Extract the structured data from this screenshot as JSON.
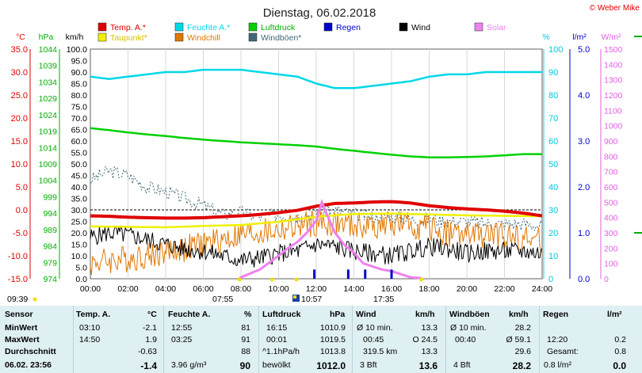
{
  "chart_data": {
    "type": "line",
    "title": "Dienstag, 06.02.2018",
    "credit": "© Weber Mike",
    "x_ticks": [
      "00:00",
      "02:00",
      "04:00",
      "06:00",
      "08:00",
      "10:00",
      "12:00",
      "14:00",
      "16:00",
      "18:00",
      "20:00",
      "22:00",
      "24:00"
    ],
    "x_range_hours": [
      0,
      24
    ],
    "axes": {
      "temp_c": {
        "label": "°C",
        "ticks": [
          "35.0",
          "30.0",
          "25.0",
          "20.0",
          "15.0",
          "10.0",
          "5.0",
          "0.0",
          "-5.0",
          "-10.0",
          "-15.0"
        ],
        "range": [
          -15,
          35
        ],
        "color": "#e00000"
      },
      "pressure_hpa": {
        "label": "hPa",
        "ticks": [
          "1044",
          "1039",
          "1034",
          "1029",
          "1024",
          "1019",
          "1014",
          "1009",
          "1004",
          "999",
          "994",
          "989",
          "984",
          "979",
          "974"
        ],
        "range": [
          974,
          1044
        ],
        "color": "#00b000"
      },
      "wind_kmh": {
        "label": "km/h",
        "ticks": [
          "100.0",
          "95.0",
          "90.0",
          "85.0",
          "80.0",
          "75.0",
          "70.0",
          "65.0",
          "60.0",
          "55.0",
          "50.0",
          "45.0",
          "40.0",
          "35.0",
          "30.0",
          "25.0",
          "20.0",
          "15.0",
          "10.0",
          "5.0",
          "0.0"
        ],
        "range": [
          0,
          100
        ],
        "color": "#000000"
      },
      "humidity_pct": {
        "label": "%",
        "ticks": [
          "100",
          "90",
          "80",
          "70",
          "60",
          "50",
          "40",
          "30",
          "20",
          "10",
          "0"
        ],
        "range": [
          0,
          100
        ],
        "color": "#00d8e8"
      },
      "rain_lm2": {
        "label": "l/m²",
        "ticks": [
          "5.0",
          "4.0",
          "3.0",
          "2.0",
          "1.0",
          "0.0"
        ],
        "range": [
          0,
          5
        ],
        "color": "#0000cc"
      },
      "solar_wm2": {
        "label": "W/m²",
        "ticks": [
          "1500",
          "1400",
          "1300",
          "1200",
          "1100",
          "1000",
          "900",
          "800",
          "700",
          "600",
          "500",
          "400",
          "300",
          "200",
          "100",
          "0"
        ],
        "range": [
          0,
          1500
        ],
        "color": "#e060e0"
      }
    },
    "legend": [
      {
        "name": "Temp. A.*",
        "color": "#e00000"
      },
      {
        "name": "Feuchte A.*",
        "color": "#00d8e8"
      },
      {
        "name": "Luftdruck",
        "color": "#00d000"
      },
      {
        "name": "Regen",
        "color": "#0000cc"
      },
      {
        "name": "Wind",
        "color": "#000000"
      },
      {
        "name": "Solar",
        "color": "#f080f0"
      },
      {
        "name": "Taupunkt*",
        "color": "#f0f000"
      },
      {
        "name": "Windchill",
        "color": "#e07800"
      },
      {
        "name": "Windböen*",
        "color": "#406878"
      }
    ],
    "series": [
      {
        "name": "Temp. A.*",
        "axis": "temp_c",
        "x": [
          0,
          1,
          2,
          3,
          4,
          5,
          6,
          7,
          8,
          9,
          10,
          11,
          12,
          13,
          14,
          15,
          16,
          17,
          18,
          19,
          20,
          21,
          22,
          23,
          24
        ],
        "values": [
          -1.3,
          -1.4,
          -1.6,
          -1.7,
          -1.8,
          -1.8,
          -1.7,
          -1.5,
          -1.3,
          -1.0,
          -0.6,
          -0.1,
          0.8,
          1.4,
          1.5,
          1.7,
          1.8,
          1.5,
          0.9,
          0.5,
          0.2,
          0.0,
          -0.3,
          -0.7,
          -1.3
        ]
      },
      {
        "name": "Taupunkt*",
        "axis": "temp_c",
        "x": [
          0,
          2,
          4,
          6,
          8,
          10,
          12,
          14,
          16,
          18,
          20,
          22,
          24
        ],
        "values": [
          -3.6,
          -3.7,
          -3.8,
          -3.5,
          -3.3,
          -2.6,
          -1.5,
          -0.9,
          -0.8,
          -1.0,
          -1.2,
          -1.3,
          -1.4
        ]
      },
      {
        "name": "Feuchte A.*",
        "axis": "humidity_pct",
        "x": [
          0,
          1,
          2,
          3,
          4,
          5,
          6,
          7,
          8,
          9,
          10,
          11,
          12,
          13,
          14,
          15,
          16,
          17,
          18,
          19,
          20,
          21,
          22,
          23,
          24
        ],
        "values": [
          88,
          87,
          88,
          89,
          90,
          90,
          91,
          91,
          91,
          90,
          89,
          88,
          85,
          83,
          83,
          84,
          85,
          86,
          88,
          89,
          89,
          90,
          90,
          90,
          90
        ]
      },
      {
        "name": "Luftdruck",
        "axis": "pressure_hpa",
        "x": [
          0,
          1,
          2,
          3,
          4,
          5,
          6,
          7,
          8,
          9,
          10,
          11,
          12,
          13,
          14,
          15,
          16,
          17,
          18,
          19,
          20,
          21,
          22,
          23,
          24
        ],
        "values": [
          1019.9,
          1019.3,
          1018.6,
          1018.0,
          1017.5,
          1016.9,
          1016.4,
          1016.0,
          1015.6,
          1015.3,
          1015.0,
          1014.7,
          1014.3,
          1013.6,
          1013.0,
          1012.4,
          1011.8,
          1011.3,
          1011.0,
          1011.0,
          1011.1,
          1011.3,
          1011.6,
          1012.0,
          1012.0
        ]
      },
      {
        "name": "Wind",
        "axis": "wind_kmh",
        "x": [
          0,
          1,
          2,
          3,
          4,
          5,
          6,
          7,
          8,
          9,
          10,
          11,
          12,
          13,
          14,
          15,
          16,
          17,
          18,
          19,
          20,
          21,
          22,
          23,
          24
        ],
        "values": [
          18,
          20,
          19,
          17,
          15,
          13,
          12,
          10,
          8,
          9,
          11,
          12,
          15,
          14,
          12,
          11,
          10,
          12,
          14,
          13,
          11,
          12,
          12,
          12,
          11
        ]
      },
      {
        "name": "Windchill",
        "axis": "temp_c",
        "x": [
          0,
          1,
          2,
          3,
          4,
          5,
          6,
          7,
          8,
          9,
          10,
          11,
          12,
          13,
          14,
          15,
          16,
          17,
          18,
          19,
          20,
          21,
          22,
          23,
          24
        ],
        "values": [
          -11.5,
          -11.0,
          -10.5,
          -10.0,
          -9.0,
          -8.5,
          -7.5,
          -6.5,
          -5.5,
          -5.0,
          -4.5,
          -3.5,
          -3.0,
          -3.0,
          -3.5,
          -3.5,
          -3.0,
          -3.5,
          -4.0,
          -5.0,
          -5.5,
          -5.5,
          -5.5,
          -6.0,
          -7.0
        ]
      },
      {
        "name": "Windböen*",
        "axis": "wind_kmh",
        "x": [
          0,
          1,
          2,
          3,
          4,
          5,
          6,
          7,
          8,
          9,
          10,
          11,
          12,
          13,
          14,
          15,
          16,
          17,
          18,
          19,
          20,
          21,
          22,
          23,
          24
        ],
        "values": [
          43,
          47,
          45,
          40,
          38,
          35,
          32,
          28,
          29,
          27,
          28,
          27,
          29,
          30,
          28,
          27,
          27,
          26,
          26,
          25,
          25,
          24,
          24,
          24,
          23
        ]
      },
      {
        "name": "Solar",
        "axis": "solar_wm2",
        "x": [
          7.9,
          8,
          9,
          10,
          10.5,
          11,
          11.5,
          12,
          12.3,
          12.6,
          13,
          13.5,
          14,
          14.5,
          15,
          15.5,
          16,
          16.5,
          17,
          17.5,
          17.6
        ],
        "values": [
          0,
          10,
          60,
          150,
          200,
          240,
          300,
          380,
          500,
          410,
          300,
          220,
          170,
          100,
          80,
          60,
          50,
          30,
          10,
          5,
          0
        ]
      },
      {
        "name": "Regen",
        "axis": "rain_lm2",
        "type": "bar",
        "x": [
          11.9,
          13.7,
          14.6,
          16.0
        ],
        "values": [
          0.2,
          0.2,
          0.2,
          0.2
        ]
      }
    ]
  },
  "chart_extras": {
    "events": [
      {
        "label": "09:39",
        "hour": 9.65
      },
      {
        "label": "07:55",
        "hour": 7.92
      },
      {
        "label": "10:57",
        "hour": 10.95
      },
      {
        "label": "17:35",
        "hour": 17.58
      }
    ]
  },
  "stats": {
    "headers": [
      "Sensor",
      "Temp. A.",
      "°C",
      "Feuchte A.",
      "%",
      "Luftdruck",
      "hPa",
      "Wind",
      "km/h",
      "Windböen",
      "km/h",
      "Regen",
      "l/m²"
    ],
    "rows": [
      {
        "label": "MinWert",
        "temp_t": "03:10",
        "temp_v": "-2.1",
        "hum_t": "12:55",
        "hum_v": "81",
        "press_t": "16:15",
        "press_v": "1010.9",
        "wind_t": "Ø 10 min.",
        "wind_v": "13.3",
        "gust_t": "Ø 10 min.",
        "gust_v": "28.2",
        "rain_t": "",
        "rain_v": ""
      },
      {
        "label": "MaxWert",
        "temp_t": "14:50",
        "temp_v": "1.9",
        "hum_t": "03:25",
        "hum_v": "91",
        "press_t": "00:01",
        "press_v": "1019.5",
        "wind_t": "00:45",
        "wind_m": "O 24.5",
        "wind_v": "",
        "gust_t": "00:40",
        "gust_v": "Ø 59.1",
        "rain_t": "12:20",
        "rain_v": "0.2"
      },
      {
        "label": "Durchschnitt",
        "temp_t": "",
        "temp_v": "-0.63",
        "hum_t": "",
        "hum_v": "88",
        "press_t": "^1.1hPa/h",
        "press_v": "1013.8",
        "wind_t": "319.5 km",
        "wind_v": "13.3",
        "gust_t": "",
        "gust_v": "29.6",
        "rain_t": "Gesamt:",
        "rain_v": "0.8"
      },
      {
        "label": "06.02. 23:56",
        "temp_t": "",
        "temp_v": "-1.4",
        "hum_t": "3.96 g/m³",
        "hum_v": "90",
        "press_t": "bewölkt",
        "press_v": "1012.0",
        "wind_t": "3 Bft",
        "wind_v": "13.6",
        "gust_t": "4 Bft",
        "gust_v": "28.2",
        "rain_t": "0.8 l/m²",
        "rain_v": "0.0"
      }
    ]
  }
}
